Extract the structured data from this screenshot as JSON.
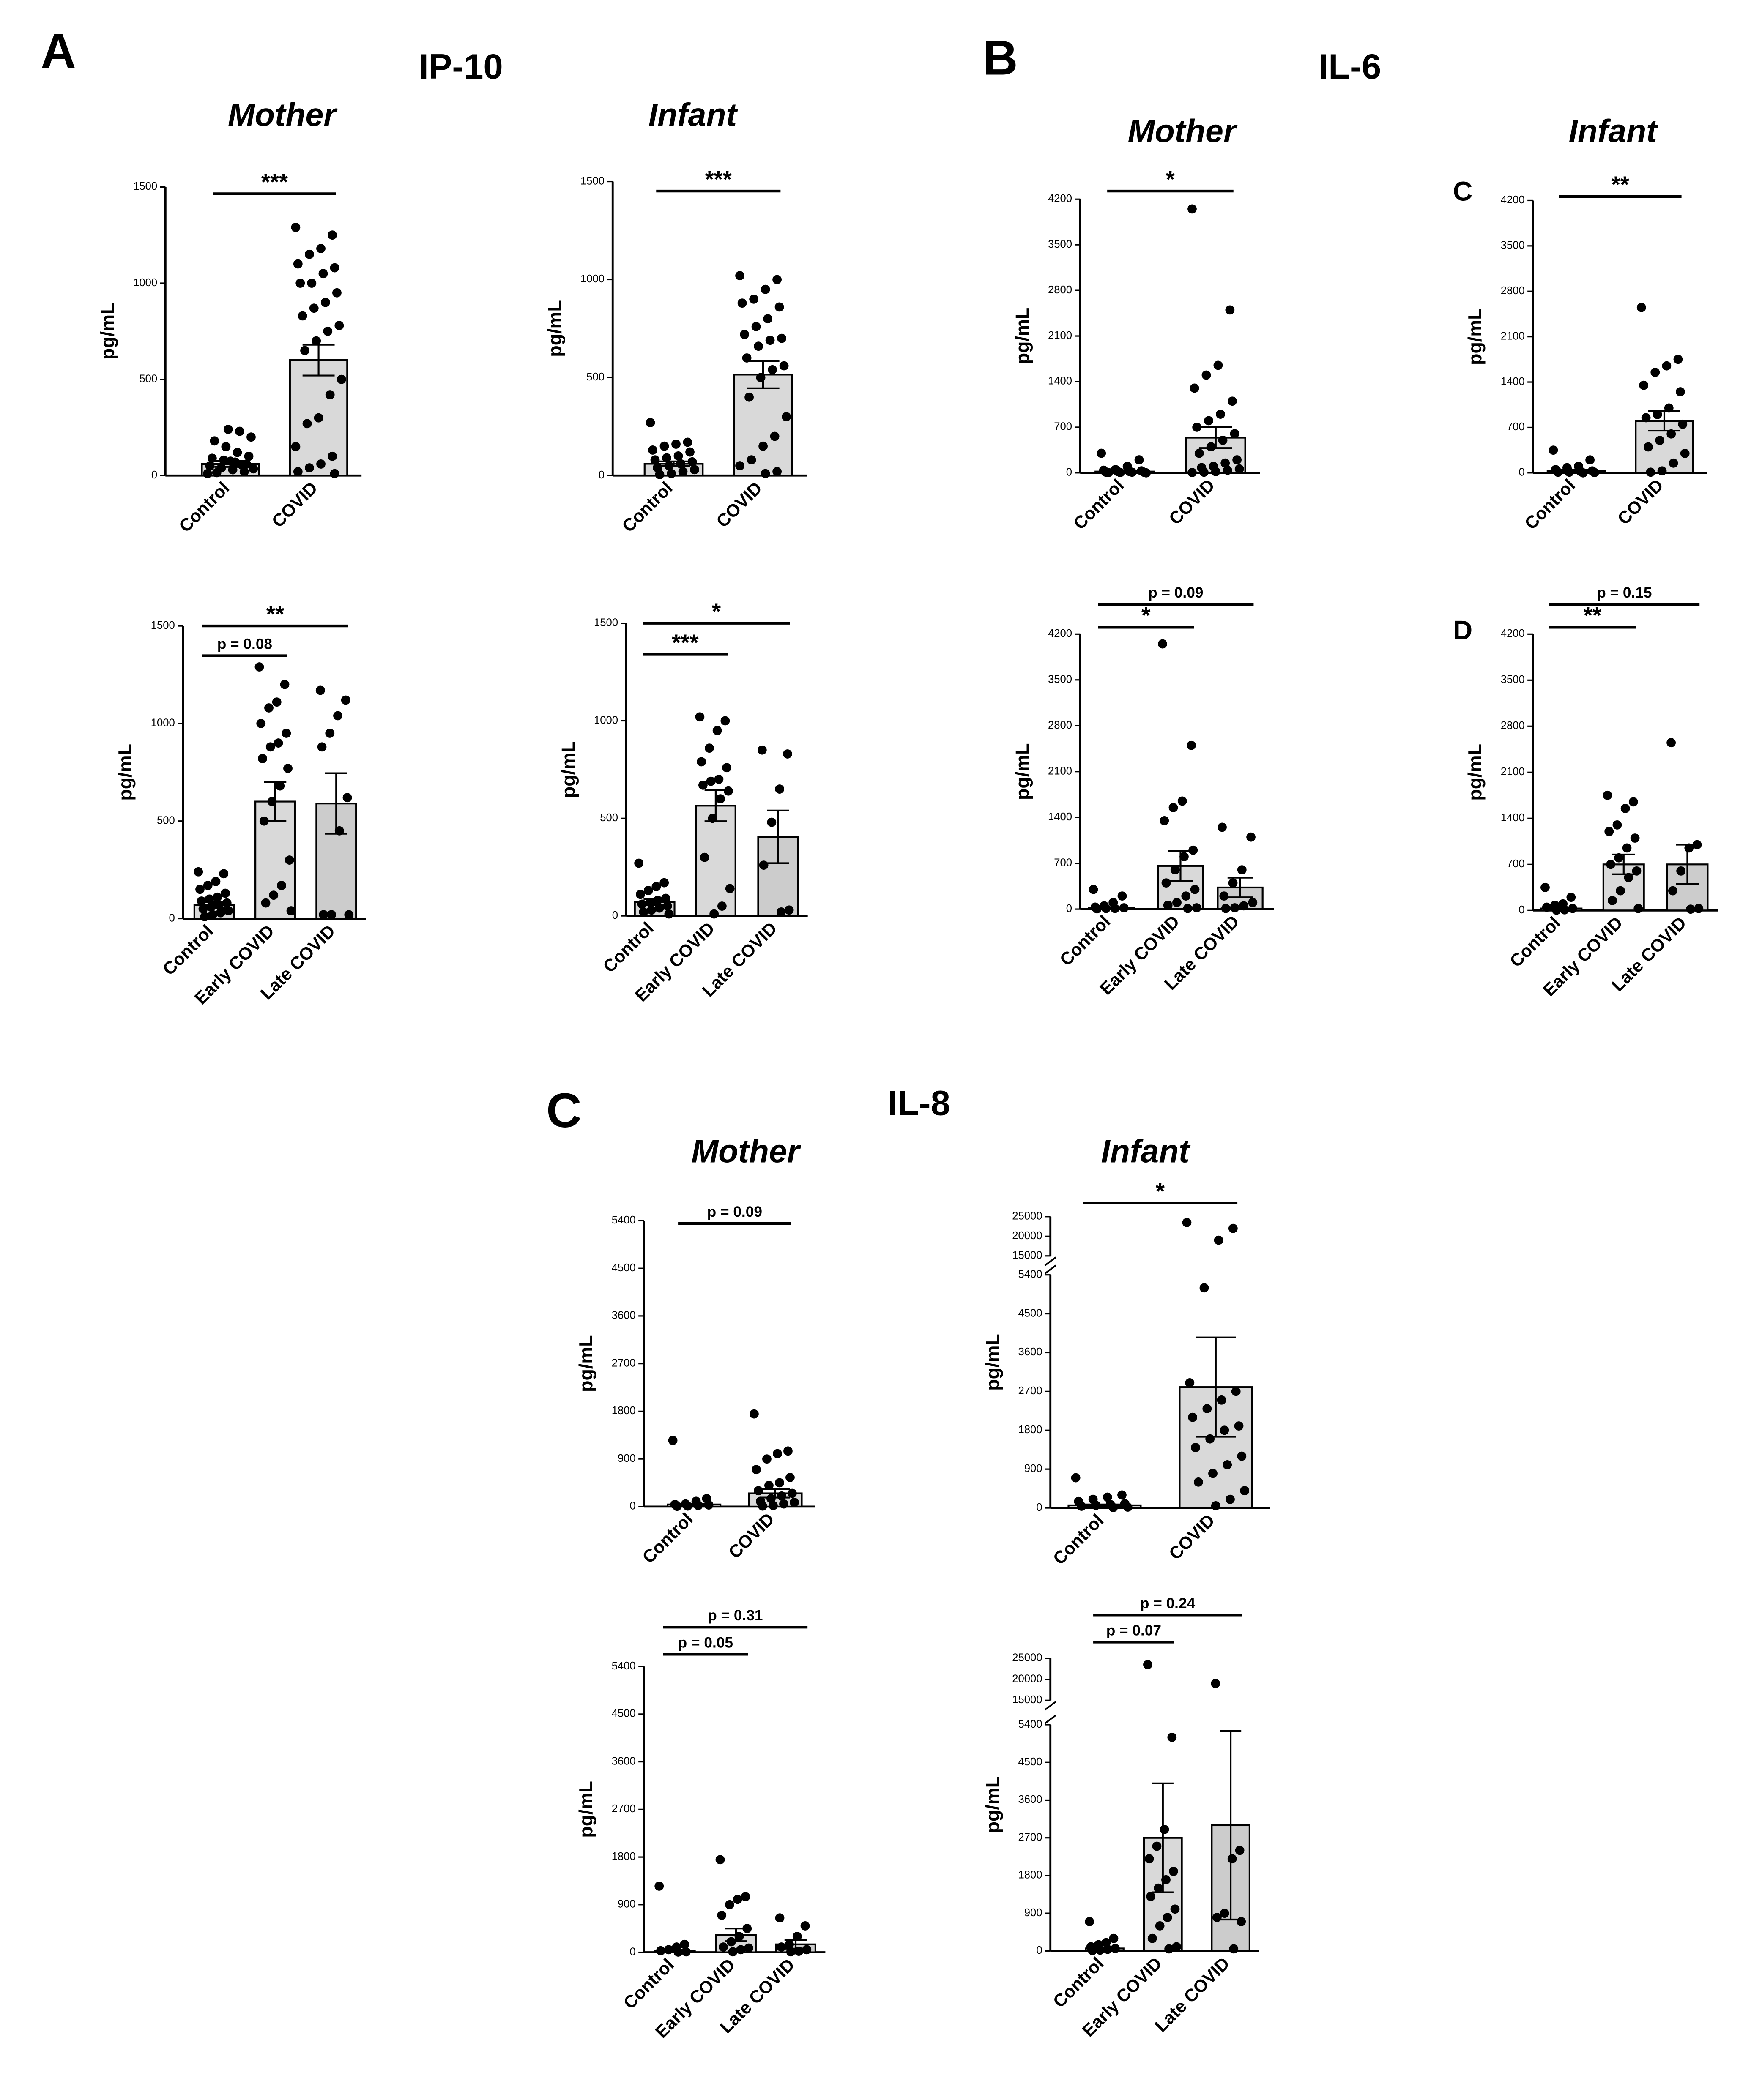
{
  "panel_labels": [
    "A",
    "B",
    "C",
    "D",
    "C"
  ],
  "titles": [
    "IP-10",
    "IL-6",
    "IL-8"
  ],
  "column_titles": [
    "Mother",
    "Infant",
    "Mother",
    "Infant",
    "Mother",
    "Infant"
  ],
  "chart_data": [
    {
      "type": "bar",
      "categories": [
        "Control",
        "COVID"
      ],
      "values": [
        60,
        600
      ],
      "errors": [
        15,
        80
      ],
      "points": [
        [
          10,
          20,
          30,
          40,
          50,
          60,
          70,
          80,
          90,
          100,
          120,
          150,
          180,
          200,
          230,
          240,
          15,
          35,
          55,
          75
        ],
        [
          1290,
          1250,
          1180,
          1150,
          1100,
          1080,
          1050,
          1000,
          1000,
          950,
          900,
          870,
          830,
          780,
          750,
          700,
          650,
          500,
          420,
          300,
          270,
          150,
          100,
          60,
          40,
          20,
          10
        ]
      ],
      "colors": [
        "#d9d9d9",
        "#d9d9d9"
      ],
      "ylabel": "pg/mL",
      "ylim": [
        0,
        1500
      ],
      "yticks": [
        0,
        500,
        1000,
        1500
      ],
      "comparisons": [
        {
          "between": [
            "Control",
            "COVID"
          ],
          "label": "***"
        }
      ]
    },
    {
      "type": "bar",
      "categories": [
        "Control",
        "COVID"
      ],
      "values": [
        60,
        515
      ],
      "errors": [
        12,
        70
      ],
      "points": [
        [
          270,
          170,
          160,
          150,
          130,
          120,
          100,
          90,
          80,
          70,
          60,
          50,
          40,
          30,
          20,
          10,
          5
        ],
        [
          1020,
          1000,
          950,
          900,
          880,
          860,
          800,
          760,
          720,
          700,
          690,
          660,
          600,
          560,
          540,
          500,
          400,
          300,
          200,
          150,
          80,
          50,
          20,
          10
        ]
      ],
      "colors": [
        "#d9d9d9",
        "#d9d9d9"
      ],
      "ylabel": "pg/mL",
      "ylim": [
        0,
        1500
      ],
      "yticks": [
        0,
        500,
        1000,
        1500
      ],
      "comparisons": [
        {
          "between": [
            "Control",
            "COVID"
          ],
          "label": "***"
        }
      ]
    },
    {
      "type": "bar",
      "categories": [
        "Control",
        "Early COVID",
        "Late COVID"
      ],
      "values": [
        70,
        600,
        590
      ],
      "errors": [
        15,
        100,
        155
      ],
      "points": [
        [
          240,
          230,
          190,
          170,
          150,
          130,
          110,
          100,
          90,
          80,
          70,
          60,
          50,
          40,
          30,
          20,
          10
        ],
        [
          1290,
          1200,
          1110,
          1080,
          1000,
          950,
          900,
          880,
          820,
          770,
          680,
          600,
          500,
          300,
          170,
          120,
          80,
          40
        ],
        [
          1170,
          1120,
          1040,
          950,
          880,
          620,
          450,
          20,
          20,
          20
        ]
      ],
      "colors": [
        "#d9d9d9",
        "#d9d9d9",
        "#cccccc"
      ],
      "ylabel": "pg/mL",
      "ylim": [
        0,
        1500
      ],
      "yticks": [
        0,
        500,
        1000,
        1500
      ],
      "comparisons": [
        {
          "between": [
            "Control",
            "Early COVID"
          ],
          "label": "p = 0.08"
        },
        {
          "between": [
            "Control",
            "Late COVID"
          ],
          "label": "**"
        }
      ]
    },
    {
      "type": "bar",
      "categories": [
        "Control",
        "Early COVID",
        "Late COVID"
      ],
      "values": [
        70,
        565,
        405
      ],
      "errors": [
        15,
        80,
        135
      ],
      "points": [
        [
          270,
          170,
          150,
          130,
          110,
          90,
          80,
          70,
          60,
          50,
          40,
          30,
          20,
          10
        ],
        [
          1020,
          1000,
          950,
          860,
          790,
          760,
          700,
          690,
          670,
          640,
          600,
          500,
          300,
          140,
          50,
          10
        ],
        [
          850,
          830,
          650,
          480,
          260,
          30,
          20
        ]
      ],
      "colors": [
        "#d9d9d9",
        "#d9d9d9",
        "#cccccc"
      ],
      "ylabel": "pg/mL",
      "ylim": [
        0,
        1500
      ],
      "yticks": [
        0,
        500,
        1000,
        1500
      ],
      "comparisons": [
        {
          "between": [
            "Control",
            "Early COVID"
          ],
          "label": "***"
        },
        {
          "between": [
            "Control",
            "Late COVID"
          ],
          "label": "*"
        }
      ]
    },
    {
      "type": "bar",
      "categories": [
        "Control",
        "COVID"
      ],
      "values": [
        20,
        540
      ],
      "errors": [
        10,
        160
      ],
      "points": [
        [
          300,
          200,
          100,
          50,
          40,
          30,
          20,
          20,
          10,
          10,
          10,
          5,
          5,
          0
        ],
        [
          4050,
          2500,
          1650,
          1500,
          1300,
          1100,
          900,
          800,
          700,
          600,
          500,
          400,
          300,
          200,
          150,
          100,
          80,
          60,
          40,
          20,
          10,
          5
        ]
      ],
      "colors": [
        "#d9d9d9",
        "#d9d9d9"
      ],
      "ylabel": "pg/mL",
      "ylim": [
        0,
        4200
      ],
      "yticks": [
        0,
        700,
        1400,
        2100,
        2800,
        3500,
        4200
      ],
      "comparisons": [
        {
          "between": [
            "Control",
            "COVID"
          ],
          "label": "*"
        }
      ]
    },
    {
      "type": "bar",
      "categories": [
        "Control",
        "COVID"
      ],
      "values": [
        30,
        800
      ],
      "errors": [
        15,
        150
      ],
      "points": [
        [
          350,
          200,
          100,
          80,
          50,
          30,
          20,
          10,
          10,
          5,
          0
        ],
        [
          2550,
          1750,
          1650,
          1550,
          1350,
          1250,
          1000,
          900,
          850,
          750,
          600,
          500,
          400,
          300,
          150,
          30,
          10
        ]
      ],
      "colors": [
        "#d9d9d9",
        "#d9d9d9"
      ],
      "ylabel": "pg/mL",
      "ylim": [
        0,
        4200
      ],
      "yticks": [
        0,
        700,
        1400,
        2100,
        2800,
        3500,
        4200
      ],
      "comparisons": [
        {
          "between": [
            "Control",
            "COVID"
          ],
          "label": "**"
        }
      ]
    },
    {
      "type": "bar",
      "categories": [
        "Control",
        "Early COVID",
        "Late COVID"
      ],
      "values": [
        20,
        660,
        330
      ],
      "errors": [
        10,
        230,
        150
      ],
      "points": [
        [
          300,
          200,
          100,
          50,
          30,
          20,
          10,
          10,
          5
        ],
        [
          4050,
          2500,
          1650,
          1550,
          1350,
          900,
          800,
          600,
          400,
          300,
          200,
          100,
          60,
          20,
          10
        ],
        [
          1250,
          1100,
          600,
          400,
          200,
          100,
          50,
          20,
          10
        ]
      ],
      "colors": [
        "#d9d9d9",
        "#d9d9d9",
        "#cccccc"
      ],
      "ylabel": "pg/mL",
      "ylim": [
        0,
        4200
      ],
      "yticks": [
        0,
        700,
        1400,
        2100,
        2800,
        3500,
        4200
      ],
      "comparisons": [
        {
          "between": [
            "Control",
            "Early COVID"
          ],
          "label": "*"
        },
        {
          "between": [
            "Control",
            "Late COVID"
          ],
          "label": "p = 0.09"
        }
      ]
    },
    {
      "type": "bar",
      "categories": [
        "Control",
        "Early COVID",
        "Late COVID"
      ],
      "values": [
        30,
        700,
        700
      ],
      "errors": [
        15,
        150,
        300
      ],
      "points": [
        [
          350,
          200,
          100,
          80,
          50,
          30,
          10,
          5
        ],
        [
          1750,
          1650,
          1550,
          1300,
          1200,
          1100,
          950,
          800,
          700,
          600,
          500,
          300,
          150,
          30
        ],
        [
          2550,
          1000,
          950,
          600,
          300,
          30,
          20
        ]
      ],
      "colors": [
        "#d9d9d9",
        "#d9d9d9",
        "#cccccc"
      ],
      "ylabel": "pg/mL",
      "ylim": [
        0,
        4200
      ],
      "yticks": [
        0,
        700,
        1400,
        2100,
        2800,
        3500,
        4200
      ],
      "comparisons": [
        {
          "between": [
            "Control",
            "Early COVID"
          ],
          "label": "**"
        },
        {
          "between": [
            "Control",
            "Late COVID"
          ],
          "label": "p = 0.15"
        }
      ]
    },
    {
      "type": "bar",
      "categories": [
        "Control",
        "COVID"
      ],
      "values": [
        40,
        250
      ],
      "errors": [
        15,
        80
      ],
      "points": [
        [
          1250,
          150,
          100,
          50,
          40,
          30,
          20,
          10,
          5
        ],
        [
          1750,
          1050,
          1000,
          900,
          700,
          550,
          450,
          400,
          300,
          250,
          200,
          150,
          100,
          80,
          50,
          20,
          10
        ]
      ],
      "colors": [
        "#d9d9d9",
        "#d9d9d9"
      ],
      "ylabel": "pg/mL",
      "ylim": [
        0,
        5400
      ],
      "yticks": [
        0,
        900,
        1800,
        2700,
        3600,
        4500,
        5400
      ],
      "comparisons": [
        {
          "between": [
            "Control",
            "COVID"
          ],
          "label": "p = 0.09"
        }
      ]
    },
    {
      "type": "bar",
      "categories": [
        "Control",
        "COVID"
      ],
      "values": [
        60,
        2800
      ],
      "errors": [
        20,
        1150
      ],
      "points": [
        [
          700,
          300,
          250,
          200,
          150,
          100,
          80,
          60,
          40,
          20,
          10
        ],
        [
          23500,
          22000,
          19000,
          5100,
          2900,
          2700,
          2500,
          2300,
          2100,
          1900,
          1800,
          1600,
          1400,
          1200,
          1000,
          800,
          600,
          400,
          200,
          50
        ]
      ],
      "colors": [
        "#d9d9d9",
        "#d9d9d9"
      ],
      "ylabel": "pg/mL",
      "ylim": [
        0,
        5400
      ],
      "yticks": [
        0,
        900,
        1800,
        2700,
        3600,
        4500,
        5400
      ],
      "ylim_break": [
        15000,
        25000
      ],
      "yticks_break": [
        15000,
        20000,
        25000
      ],
      "comparisons": [
        {
          "between": [
            "Control",
            "COVID"
          ],
          "label": "*"
        }
      ]
    },
    {
      "type": "bar",
      "categories": [
        "Control",
        "Early COVID",
        "Late COVID"
      ],
      "values": [
        30,
        330,
        150
      ],
      "errors": [
        15,
        120,
        80
      ],
      "points": [
        [
          1250,
          150,
          100,
          50,
          30,
          10,
          5
        ],
        [
          1750,
          1050,
          1000,
          900,
          700,
          450,
          300,
          200,
          100,
          80,
          50,
          10
        ],
        [
          650,
          500,
          300,
          150,
          100,
          50,
          20,
          10
        ]
      ],
      "colors": [
        "#d9d9d9",
        "#d9d9d9",
        "#cccccc"
      ],
      "ylabel": "pg/mL",
      "ylim": [
        0,
        5400
      ],
      "yticks": [
        0,
        900,
        1800,
        2700,
        3600,
        4500,
        5400
      ],
      "comparisons": [
        {
          "between": [
            "Control",
            "Early COVID"
          ],
          "label": "p = 0.05"
        },
        {
          "between": [
            "Control",
            "Late COVID"
          ],
          "label": "p = 0.31"
        }
      ]
    },
    {
      "type": "bar",
      "categories": [
        "Control",
        "Early COVID",
        "Late COVID"
      ],
      "values": [
        60,
        2700,
        3000
      ],
      "errors": [
        20,
        1300,
        2250
      ],
      "points": [
        [
          700,
          300,
          200,
          150,
          100,
          60,
          40,
          20,
          10
        ],
        [
          23500,
          5100,
          2900,
          2500,
          2200,
          1900,
          1700,
          1500,
          1300,
          1000,
          800,
          600,
          300,
          100,
          50
        ],
        [
          19000,
          2400,
          2200,
          900,
          800,
          700,
          50
        ]
      ],
      "colors": [
        "#d9d9d9",
        "#d9d9d9",
        "#cccccc"
      ],
      "ylabel": "pg/mL",
      "ylim": [
        0,
        5400
      ],
      "yticks": [
        0,
        900,
        1800,
        2700,
        3600,
        4500,
        5400
      ],
      "ylim_break": [
        15000,
        25000
      ],
      "yticks_break": [
        15000,
        20000,
        25000
      ],
      "comparisons": [
        {
          "between": [
            "Control",
            "Early COVID"
          ],
          "label": "p = 0.07"
        },
        {
          "between": [
            "Control",
            "Late COVID"
          ],
          "label": "p = 0.24"
        }
      ]
    }
  ]
}
